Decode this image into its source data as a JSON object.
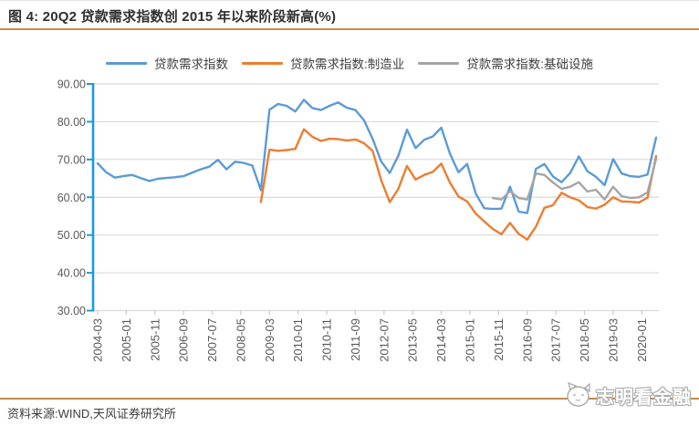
{
  "figure": {
    "title": "图 4: 20Q2 贷款需求指数创 2015 年以来阶段新高(%)",
    "source_note": "资料来源:WIND,天风证券研究所",
    "watermark_text": "志明看金融"
  },
  "colors": {
    "title_rule": "#C98C4F",
    "bottom_rule": "#BF8B52",
    "y_axis": "#1B9CD8",
    "gridline": "#D9D9D9",
    "tick_label": "#595959",
    "series_blue": "#5B9BD5",
    "series_orange": "#ED7D31",
    "series_gray": "#A5A5A5"
  },
  "chart_data": {
    "type": "line",
    "title": "图 4: 20Q2 贷款需求指数创 2015 年以来阶段新高(%)",
    "frequency": "quarterly",
    "x_start": "2004-03",
    "x_end": "2020-06",
    "ylim": [
      30,
      90
    ],
    "y_tick_labels": [
      "90.00",
      "80.00",
      "70.00",
      "60.00",
      "50.00",
      "40.00",
      "30.00"
    ],
    "x_tick_labels": [
      "2004-03",
      "2005-01",
      "2005-11",
      "2006-09",
      "2007-07",
      "2008-05",
      "2009-03",
      "2010-01",
      "2010-11",
      "2011-09",
      "2012-07",
      "2013-05",
      "2014-03",
      "2015-01",
      "2015-11",
      "2016-09",
      "2017-07",
      "2018-05",
      "2019-03",
      "2020-01"
    ],
    "x_tick_month_interval": 10,
    "total_months": 195,
    "grid": "horizontal",
    "legend_position": "top",
    "series": [
      {
        "name": "贷款需求指数",
        "color": "#5B9BD5",
        "start_index": 0,
        "start_label": "2004-03",
        "values": [
          69.0,
          66.6,
          65.2,
          65.6,
          65.9,
          65.1,
          64.3,
          64.9,
          65.1,
          65.3,
          65.6,
          66.5,
          67.4,
          68.1,
          69.9,
          67.4,
          69.4,
          69.1,
          68.4,
          61.9,
          83.2,
          84.7,
          84.2,
          82.7,
          85.8,
          83.6,
          83.1,
          84.2,
          85.1,
          83.7,
          83.1,
          80.4,
          75.5,
          69.5,
          66.4,
          71.0,
          77.9,
          73.0,
          75.2,
          76.1,
          78.4,
          71.6,
          66.6,
          68.8,
          61.0,
          57.1,
          56.9,
          57.0,
          62.8,
          56.2,
          55.8,
          67.5,
          68.8,
          65.5,
          64.0,
          66.4,
          70.8,
          66.9,
          65.4,
          63.2,
          70.1,
          66.3,
          65.6,
          65.4,
          66.0,
          75.8
        ]
      },
      {
        "name": "贷款需求指数:制造业",
        "color": "#ED7D31",
        "start_index": 19,
        "start_label": "2008-12",
        "values": [
          58.7,
          72.6,
          72.3,
          72.5,
          72.8,
          78.0,
          76.0,
          74.9,
          75.5,
          75.4,
          75.0,
          75.3,
          74.3,
          72.3,
          64.5,
          58.7,
          62.2,
          68.3,
          64.7,
          65.9,
          66.7,
          68.9,
          63.9,
          60.2,
          58.9,
          55.7,
          53.6,
          51.6,
          50.2,
          53.2,
          50.3,
          48.8,
          52.2,
          57.2,
          57.9,
          61.2,
          60.0,
          59.2,
          57.4,
          57.0,
          58.0,
          60.0,
          58.9,
          58.8,
          58.6,
          59.9,
          70.9
        ]
      },
      {
        "name": "贷款需求指数:基础设施",
        "color": "#A5A5A5",
        "start_index": 46,
        "start_label": "2015-09",
        "values": [
          59.8,
          59.4,
          61.6,
          59.8,
          59.4,
          66.3,
          65.9,
          63.9,
          62.2,
          62.8,
          64.0,
          61.5,
          62.0,
          59.4,
          62.8,
          60.3,
          59.8,
          60.0,
          61.3,
          70.2
        ]
      }
    ]
  }
}
